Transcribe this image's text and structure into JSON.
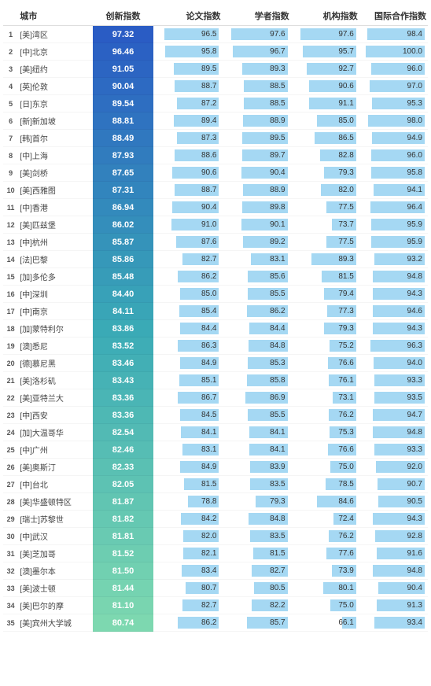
{
  "header": {
    "rank": "",
    "city": "城市",
    "idx": "创新指数",
    "paper": "论文指数",
    "scholar": "学者指数",
    "inst": "机构指数",
    "intl": "国际合作指数"
  },
  "bar_color": "#a5d8f3",
  "idx_gradient": {
    "top": "#2a5cc4",
    "mid": "#3aaab6",
    "bottom": "#7dd8b0"
  },
  "rows": [
    {
      "rank": 1,
      "city": "[美]湾区",
      "idx": 97.32,
      "paper": 96.5,
      "scholar": 97.6,
      "inst": 97.6,
      "intl": 98.4
    },
    {
      "rank": 2,
      "city": "[中]北京",
      "idx": 96.46,
      "paper": 95.8,
      "scholar": 96.7,
      "inst": 95.7,
      "intl": 100.0
    },
    {
      "rank": 3,
      "city": "[美]纽约",
      "idx": 91.05,
      "paper": 89.5,
      "scholar": 89.3,
      "inst": 92.7,
      "intl": 96.0
    },
    {
      "rank": 4,
      "city": "[英]伦敦",
      "idx": 90.04,
      "paper": 88.7,
      "scholar": 88.5,
      "inst": 90.6,
      "intl": 97.0
    },
    {
      "rank": 5,
      "city": "[日]东京",
      "idx": 89.54,
      "paper": 87.2,
      "scholar": 88.5,
      "inst": 91.1,
      "intl": 95.3
    },
    {
      "rank": 6,
      "city": "[新]新加坡",
      "idx": 88.81,
      "paper": 89.4,
      "scholar": 88.9,
      "inst": 85.0,
      "intl": 98.0
    },
    {
      "rank": 7,
      "city": "[韩]首尔",
      "idx": 88.49,
      "paper": 87.3,
      "scholar": 89.5,
      "inst": 86.5,
      "intl": 94.9
    },
    {
      "rank": 8,
      "city": "[中]上海",
      "idx": 87.93,
      "paper": 88.6,
      "scholar": 89.7,
      "inst": 82.8,
      "intl": 96.0
    },
    {
      "rank": 9,
      "city": "[美]剑桥",
      "idx": 87.65,
      "paper": 90.6,
      "scholar": 90.4,
      "inst": 79.3,
      "intl": 95.8
    },
    {
      "rank": 10,
      "city": "[美]西雅图",
      "idx": 87.31,
      "paper": 88.7,
      "scholar": 88.9,
      "inst": 82.0,
      "intl": 94.1
    },
    {
      "rank": 11,
      "city": "[中]香港",
      "idx": 86.94,
      "paper": 90.4,
      "scholar": 89.8,
      "inst": 77.5,
      "intl": 96.4
    },
    {
      "rank": 12,
      "city": "[美]匹兹堡",
      "idx": 86.02,
      "paper": 91.0,
      "scholar": 90.1,
      "inst": 73.7,
      "intl": 95.9
    },
    {
      "rank": 13,
      "city": "[中]杭州",
      "idx": 85.87,
      "paper": 87.6,
      "scholar": 89.2,
      "inst": 77.5,
      "intl": 95.9
    },
    {
      "rank": 14,
      "city": "[法]巴黎",
      "idx": 85.86,
      "paper": 82.7,
      "scholar": 83.1,
      "inst": 89.3,
      "intl": 93.2
    },
    {
      "rank": 15,
      "city": "[加]多伦多",
      "idx": 85.48,
      "paper": 86.2,
      "scholar": 85.6,
      "inst": 81.5,
      "intl": 94.8
    },
    {
      "rank": 16,
      "city": "[中]深圳",
      "idx": 84.4,
      "paper": 85.0,
      "scholar": 85.5,
      "inst": 79.4,
      "intl": 94.3
    },
    {
      "rank": 17,
      "city": "[中]南京",
      "idx": 84.11,
      "paper": 85.4,
      "scholar": 86.2,
      "inst": 77.3,
      "intl": 94.6
    },
    {
      "rank": 18,
      "city": "[加]蒙特利尔",
      "idx": 83.86,
      "paper": 84.4,
      "scholar": 84.4,
      "inst": 79.3,
      "intl": 94.3
    },
    {
      "rank": 19,
      "city": "[澳]悉尼",
      "idx": 83.52,
      "paper": 86.3,
      "scholar": 84.8,
      "inst": 75.2,
      "intl": 96.3
    },
    {
      "rank": 20,
      "city": "[德]慕尼黑",
      "idx": 83.46,
      "paper": 84.9,
      "scholar": 85.3,
      "inst": 76.6,
      "intl": 94.0
    },
    {
      "rank": 21,
      "city": "[美]洛杉矶",
      "idx": 83.43,
      "paper": 85.1,
      "scholar": 85.8,
      "inst": 76.1,
      "intl": 93.3
    },
    {
      "rank": 22,
      "city": "[美]亚特兰大",
      "idx": 83.36,
      "paper": 86.7,
      "scholar": 86.9,
      "inst": 73.1,
      "intl": 93.5
    },
    {
      "rank": 23,
      "city": "[中]西安",
      "idx": 83.36,
      "paper": 84.5,
      "scholar": 85.5,
      "inst": 76.2,
      "intl": 94.7
    },
    {
      "rank": 24,
      "city": "[加]大温哥华",
      "idx": 82.54,
      "paper": 84.1,
      "scholar": 84.1,
      "inst": 75.3,
      "intl": 94.8
    },
    {
      "rank": 25,
      "city": "[中]广州",
      "idx": 82.46,
      "paper": 83.1,
      "scholar": 84.1,
      "inst": 76.6,
      "intl": 93.3
    },
    {
      "rank": 26,
      "city": "[美]奥斯汀",
      "idx": 82.33,
      "paper": 84.9,
      "scholar": 83.9,
      "inst": 75.0,
      "intl": 92.0
    },
    {
      "rank": 27,
      "city": "[中]台北",
      "idx": 82.05,
      "paper": 81.5,
      "scholar": 83.5,
      "inst": 78.5,
      "intl": 90.7
    },
    {
      "rank": 28,
      "city": "[美]华盛顿特区",
      "idx": 81.87,
      "paper": 78.8,
      "scholar": 79.3,
      "inst": 84.6,
      "intl": 90.5
    },
    {
      "rank": 29,
      "city": "[瑞士]苏黎世",
      "idx": 81.82,
      "paper": 84.2,
      "scholar": 84.8,
      "inst": 72.4,
      "intl": 94.3
    },
    {
      "rank": 30,
      "city": "[中]武汉",
      "idx": 81.81,
      "paper": 82.0,
      "scholar": 83.5,
      "inst": 76.2,
      "intl": 92.8
    },
    {
      "rank": 31,
      "city": "[美]芝加哥",
      "idx": 81.52,
      "paper": 82.1,
      "scholar": 81.5,
      "inst": 77.6,
      "intl": 91.6
    },
    {
      "rank": 32,
      "city": "[澳]墨尔本",
      "idx": 81.5,
      "paper": 83.4,
      "scholar": 82.7,
      "inst": 73.9,
      "intl": 94.8
    },
    {
      "rank": 33,
      "city": "[美]波士顿",
      "idx": 81.44,
      "paper": 80.7,
      "scholar": 80.5,
      "inst": 80.1,
      "intl": 90.4
    },
    {
      "rank": 34,
      "city": "[美]巴尔的摩",
      "idx": 81.1,
      "paper": 82.7,
      "scholar": 82.2,
      "inst": 75.0,
      "intl": 91.3
    },
    {
      "rank": 35,
      "city": "[美]宾州大学城",
      "idx": 80.74,
      "paper": 86.2,
      "scholar": 85.7,
      "inst": 66.1,
      "intl": 93.4
    }
  ]
}
